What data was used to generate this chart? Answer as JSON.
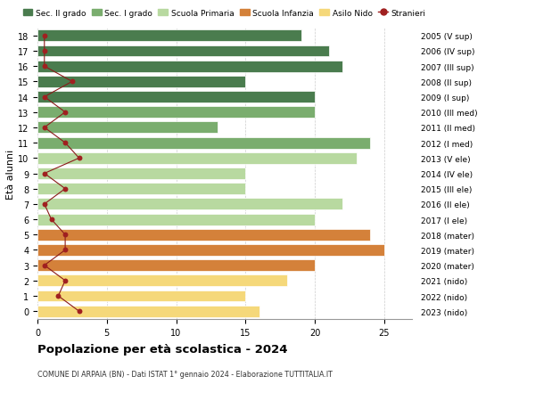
{
  "ages": [
    18,
    17,
    16,
    15,
    14,
    13,
    12,
    11,
    10,
    9,
    8,
    7,
    6,
    5,
    4,
    3,
    2,
    1,
    0
  ],
  "right_labels": [
    "2005 (V sup)",
    "2006 (IV sup)",
    "2007 (III sup)",
    "2008 (II sup)",
    "2009 (I sup)",
    "2010 (III med)",
    "2011 (II med)",
    "2012 (I med)",
    "2013 (V ele)",
    "2014 (IV ele)",
    "2015 (III ele)",
    "2016 (II ele)",
    "2017 (I ele)",
    "2018 (mater)",
    "2019 (mater)",
    "2020 (mater)",
    "2021 (nido)",
    "2022 (nido)",
    "2023 (nido)"
  ],
  "bar_values": [
    19,
    21,
    22,
    15,
    20,
    20,
    13,
    24,
    23,
    15,
    15,
    22,
    20,
    24,
    25,
    20,
    18,
    15,
    16
  ],
  "bar_colors": [
    "#4a7c4e",
    "#4a7c4e",
    "#4a7c4e",
    "#4a7c4e",
    "#4a7c4e",
    "#7aad6e",
    "#7aad6e",
    "#7aad6e",
    "#b8d9a0",
    "#b8d9a0",
    "#b8d9a0",
    "#b8d9a0",
    "#b8d9a0",
    "#d4813a",
    "#d4813a",
    "#d4813a",
    "#f5d87a",
    "#f5d87a",
    "#f5d87a"
  ],
  "stranieri_values": [
    0.5,
    0.5,
    0.5,
    2.5,
    0.5,
    2,
    0.5,
    2,
    3,
    0.5,
    2,
    0.5,
    1,
    2,
    2,
    0.5,
    2,
    1.5,
    3
  ],
  "legend_labels": [
    "Sec. II grado",
    "Sec. I grado",
    "Scuola Primaria",
    "Scuola Infanzia",
    "Asilo Nido",
    "Stranieri"
  ],
  "legend_colors": [
    "#4a7c4e",
    "#7aad6e",
    "#b8d9a0",
    "#d4813a",
    "#f5d87a",
    "#a02020"
  ],
  "title": "Popolazione per età scolastica - 2024",
  "subtitle": "COMUNE DI ARPAIA (BN) - Dati ISTAT 1° gennaio 2024 - Elaborazione TUTTITALIA.IT",
  "ylabel_left": "Età alunni",
  "xlim_max": 27,
  "bg_color": "#ffffff",
  "grid_color": "#cccccc",
  "bar_height": 0.75
}
